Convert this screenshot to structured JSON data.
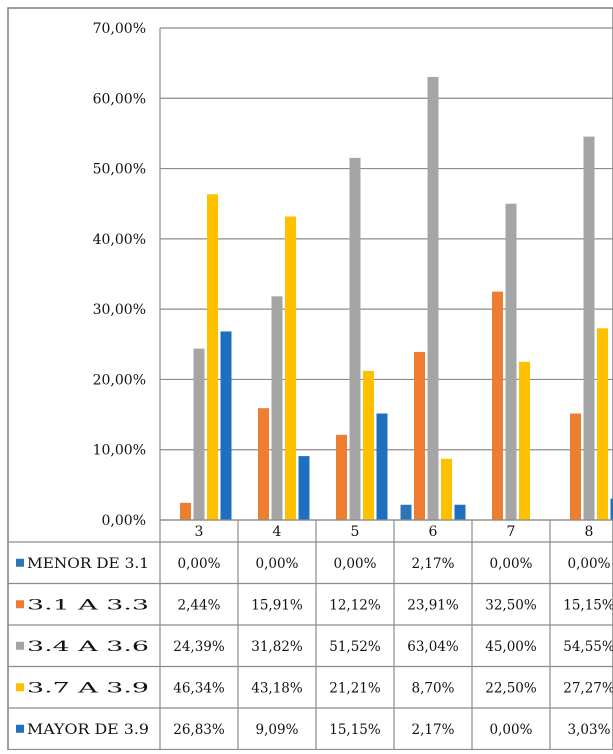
{
  "colors": {
    "series": [
      "#2E75B6",
      "#ED7D31",
      "#A5A5A5",
      "#FFC000",
      "#1F6FC1"
    ],
    "grid": "#8c8c8c",
    "border": "#7f7f7f",
    "text": "#111111"
  },
  "chart_data": {
    "type": "bar",
    "categories": [
      "3",
      "4",
      "5",
      "6",
      "7",
      "8"
    ],
    "ylim": [
      0,
      70
    ],
    "yticks": [
      "0,00%",
      "10,00%",
      "20,00%",
      "30,00%",
      "40,00%",
      "50,00%",
      "60,00%",
      "70,00%"
    ],
    "grid": true,
    "legend_placement": "data-table-left",
    "series": [
      {
        "name": "MENOR DE 3.1",
        "values": [
          0.0,
          0.0,
          0.0,
          2.17,
          0.0,
          0.0
        ],
        "labels": [
          "0,00%",
          "0,00%",
          "0,00%",
          "2,17%",
          "0,00%",
          "0,00%"
        ]
      },
      {
        "name": "3.1 A 3.3",
        "values": [
          2.44,
          15.91,
          12.12,
          23.91,
          32.5,
          15.15
        ],
        "labels": [
          "2,44%",
          "15,91%",
          "12,12%",
          "23,91%",
          "32,50%",
          "15,15%"
        ]
      },
      {
        "name": "3.4 A 3.6",
        "values": [
          24.39,
          31.82,
          51.52,
          63.04,
          45.0,
          54.55
        ],
        "labels": [
          "24,39%",
          "31,82%",
          "51,52%",
          "63,04%",
          "45,00%",
          "54,55%"
        ]
      },
      {
        "name": "3.7 A 3.9",
        "values": [
          46.34,
          43.18,
          21.21,
          8.7,
          22.5,
          27.27
        ],
        "labels": [
          "46,34%",
          "43,18%",
          "21,21%",
          "8,70%",
          "22,50%",
          "27,27%"
        ]
      },
      {
        "name": "MAYOR DE 3.9",
        "values": [
          26.83,
          9.09,
          15.15,
          2.17,
          0.0,
          3.03
        ],
        "labels": [
          "26,83%",
          "9,09%",
          "15,15%",
          "2,17%",
          "0,00%",
          "3,03%"
        ]
      }
    ]
  }
}
